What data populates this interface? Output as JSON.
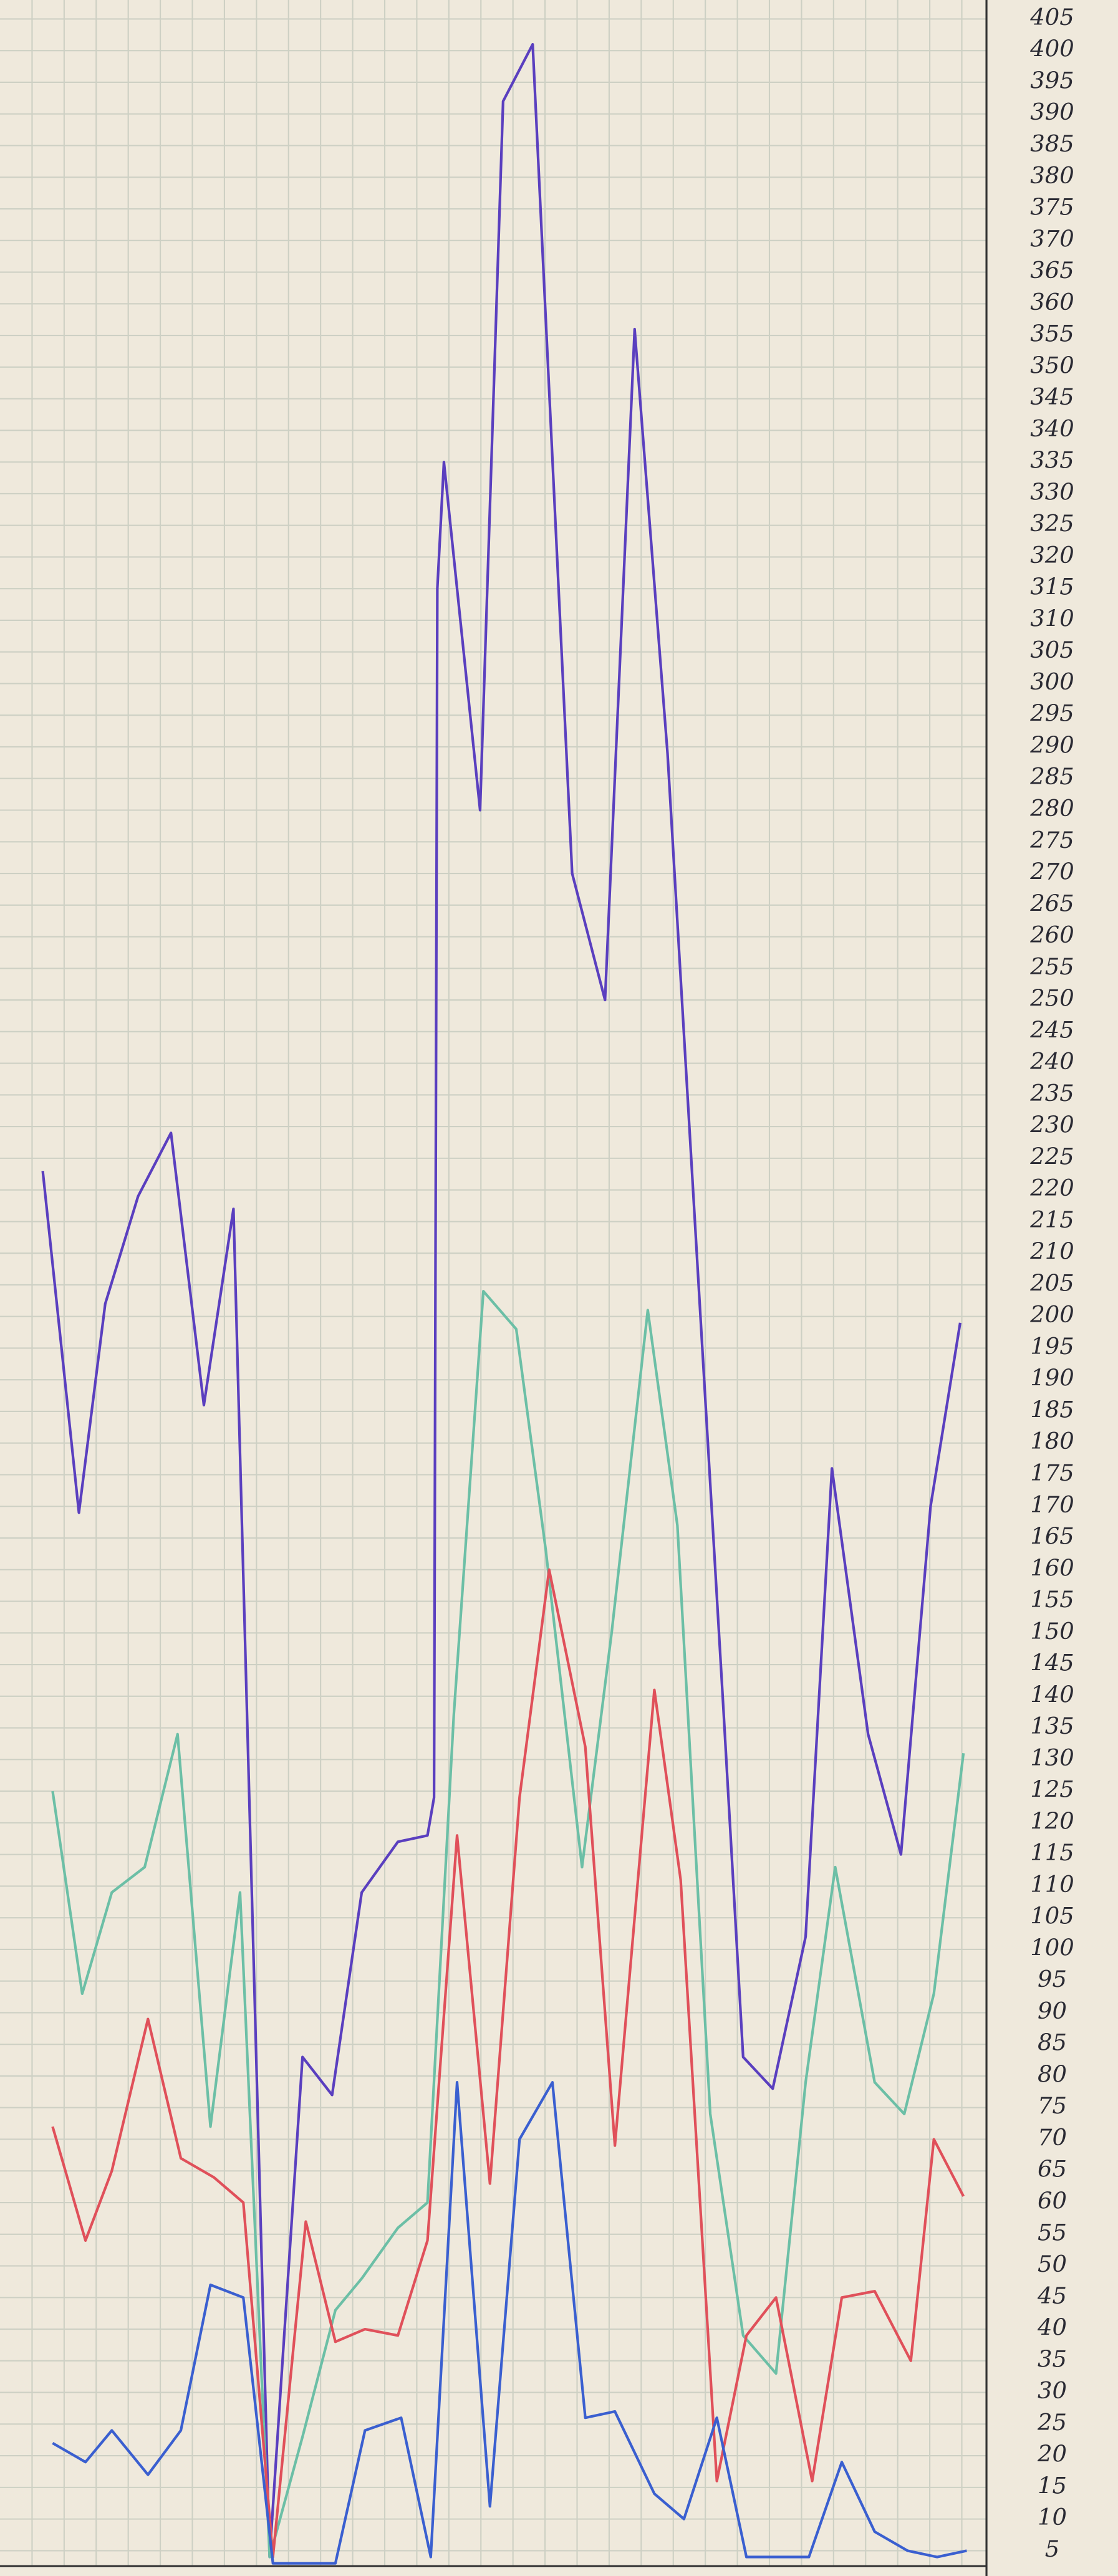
{
  "chart_data": {
    "type": "line",
    "xlim": [
      0,
      30
    ],
    "ylim": [
      1,
      408
    ],
    "yticks": [
      405,
      400,
      395,
      390,
      385,
      380,
      375,
      370,
      365,
      360,
      355,
      350,
      345,
      340,
      335,
      330,
      325,
      320,
      315,
      310,
      305,
      300,
      295,
      290,
      285,
      280,
      275,
      270,
      265,
      260,
      255,
      250,
      245,
      240,
      235,
      230,
      225,
      220,
      215,
      210,
      205,
      200,
      195,
      190,
      185,
      180,
      175,
      170,
      165,
      160,
      155,
      150,
      145,
      140,
      135,
      130,
      125,
      120,
      115,
      110,
      105,
      100,
      95,
      90,
      85,
      80,
      75,
      70,
      65,
      60,
      55,
      50,
      45,
      40,
      35,
      30,
      25,
      20,
      15,
      10,
      5
    ],
    "grid": true,
    "series": [
      {
        "color": "#5a3fbf",
        "x": [
          1.3,
          2.4,
          3.2,
          4.2,
          5.2,
          6.2,
          7.1,
          8.2,
          9.2,
          10.1,
          11,
          12.1,
          13,
          13.2,
          13.3,
          13.5,
          14.6,
          15.3,
          16.2,
          17.4,
          18.4,
          19.3,
          20.3,
          22,
          22.6,
          23.5,
          24.5,
          25.3,
          26.4,
          27.4,
          28.3,
          29.2
        ],
        "values": [
          223,
          169,
          202,
          219,
          229,
          186,
          217,
          4,
          83,
          77,
          109,
          117,
          118,
          124,
          315,
          335,
          280,
          392,
          401,
          270,
          250,
          356,
          289,
          138,
          83,
          78,
          102,
          176,
          134,
          115,
          170,
          199
        ]
      },
      {
        "color": "#6cbfa6",
        "x": [
          1.6,
          2.5,
          3.4,
          4.4,
          5.4,
          6.4,
          7.3,
          8.2,
          9.2,
          10.2,
          11,
          12.1,
          13,
          13.8,
          14.7,
          15.7,
          16.6,
          17.7,
          18.6,
          19.7,
          20.6,
          21.6,
          22.6,
          23.6,
          24.5,
          25.4,
          26.6,
          27.5,
          28.4,
          29.3
        ],
        "values": [
          125,
          93,
          109,
          113,
          134,
          72,
          109,
          4,
          23,
          43,
          48,
          56,
          60,
          137,
          204,
          198,
          163,
          113,
          150,
          201,
          167,
          74,
          39,
          33,
          79,
          113,
          79,
          74,
          93,
          131
        ]
      },
      {
        "color": "#e0505a",
        "x": [
          1.6,
          2.6,
          3.4,
          4.5,
          5.5,
          6.5,
          7.4,
          8.3,
          9.3,
          10.2,
          11.1,
          12.1,
          13,
          13.9,
          14.9,
          15.8,
          16.7,
          17.8,
          18.7,
          19.9,
          20.7,
          21.8,
          22.7,
          23.6,
          24.7,
          25.6,
          26.6,
          27.7,
          28.4,
          29.3
        ],
        "values": [
          72,
          54,
          65,
          89,
          67,
          64,
          60,
          4,
          57,
          38,
          40,
          39,
          54,
          118,
          63,
          124,
          160,
          132,
          69,
          141,
          111,
          16,
          39,
          45,
          16,
          45,
          46,
          35,
          70,
          61
        ]
      },
      {
        "color": "#3a5fd0",
        "x": [
          1.6,
          2.6,
          3.4,
          4.5,
          5.5,
          6.4,
          7.4,
          8.3,
          9.2,
          10.2,
          11.1,
          12.2,
          13.1,
          13.9,
          14.9,
          15.8,
          16.8,
          17.8,
          18.7,
          19.9,
          20.8,
          21.8,
          22.7,
          23.7,
          24.6,
          25.6,
          26.6,
          27.6,
          28.5,
          29.4
        ],
        "values": [
          22,
          19,
          24,
          17,
          24,
          47,
          45,
          3,
          3,
          3,
          24,
          26,
          4,
          79,
          12,
          70,
          79,
          26,
          27,
          14,
          10,
          26,
          4,
          4,
          4,
          19,
          8,
          5,
          4,
          5
        ]
      }
    ]
  }
}
